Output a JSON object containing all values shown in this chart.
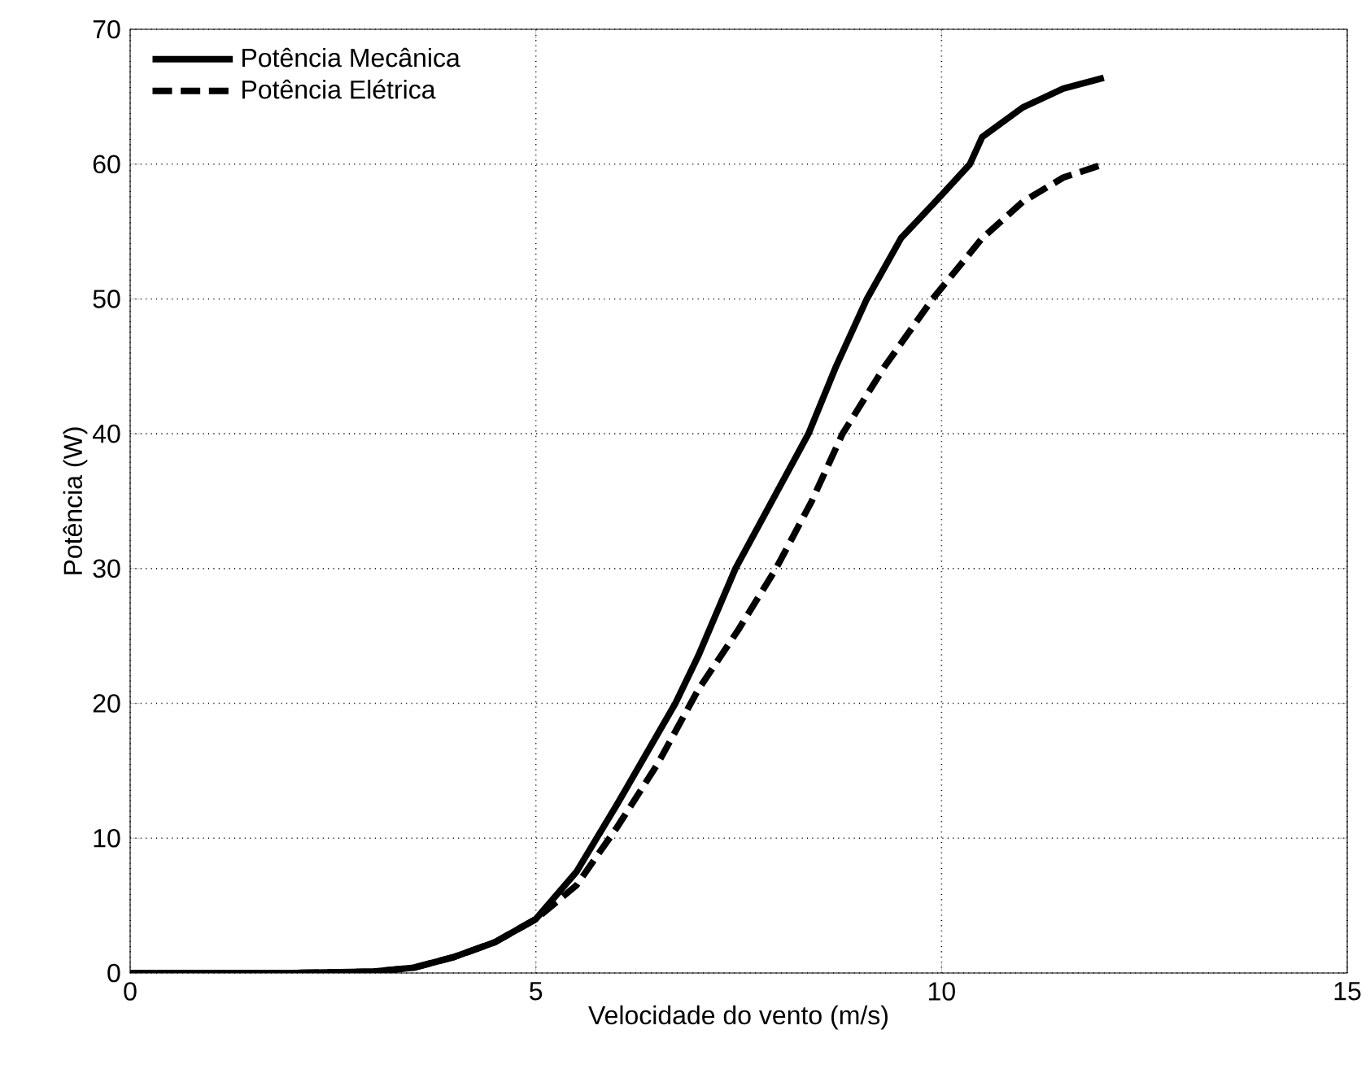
{
  "chart_data": {
    "type": "line",
    "xlabel": "Velocidade do vento (m/s)",
    "ylabel": "Potência (W)",
    "series": [
      {
        "name": "Potência Mecânica",
        "color": "#000000",
        "line_style": "solid",
        "x": [
          0,
          1,
          2,
          3,
          3.5,
          4,
          4.5,
          5,
          5.5,
          5.75,
          6,
          6.72,
          7,
          7.46,
          8,
          8.36,
          8.7,
          9.08,
          9.5,
          10,
          10.35,
          10.5,
          11,
          11.5,
          12
        ],
        "values": [
          0,
          0,
          0,
          0.1,
          0.4,
          1.2,
          2.3,
          4,
          7.5,
          10,
          12.5,
          20,
          23.5,
          30,
          36,
          40,
          45,
          50,
          54.5,
          57.7,
          60,
          62,
          64.2,
          65.6,
          66.4
        ]
      },
      {
        "name": "Potência Elétrica",
        "color": "#000000",
        "line_style": "dashed",
        "x": [
          0,
          1,
          2,
          3,
          3.5,
          4,
          4.5,
          5,
          5.5,
          6,
          6.5,
          7,
          7.5,
          7.96,
          8.4,
          8.78,
          9.3,
          9.89,
          10.5,
          11,
          11.5,
          12
        ],
        "values": [
          0,
          0,
          0,
          0.1,
          0.4,
          1.2,
          2.3,
          4,
          6.5,
          10.8,
          15.5,
          21,
          25.5,
          30,
          35,
          40,
          45,
          50,
          54.5,
          57.2,
          59,
          60
        ]
      }
    ],
    "xlim": [
      0,
      15
    ],
    "ylim": [
      0,
      70
    ],
    "xticks": [
      0,
      5,
      10,
      15
    ],
    "yticks": [
      0,
      10,
      20,
      30,
      40,
      50,
      60,
      70
    ],
    "grid": true,
    "legend": "top left"
  }
}
